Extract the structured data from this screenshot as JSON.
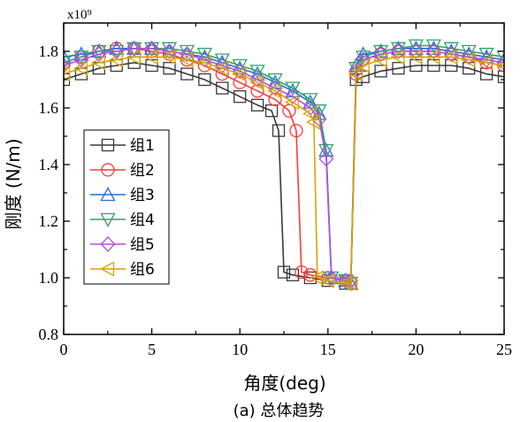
{
  "chart_data": {
    "type": "line",
    "title": "",
    "xlabel": "角度(deg)",
    "ylabel": "刚度 (N/m)",
    "y_multiplier": "x10⁹",
    "caption": "(a)  总体趋势",
    "xlim": [
      0,
      25
    ],
    "ylim": [
      0.8,
      1.9
    ],
    "xticks": [
      0,
      5,
      10,
      15,
      20,
      25
    ],
    "xtick_labels": [
      "0",
      "5",
      "10",
      "15",
      "20",
      "25"
    ],
    "yticks": [
      0.8,
      1.0,
      1.2,
      1.4,
      1.6,
      1.8
    ],
    "ytick_labels": [
      "0.8",
      "1.0",
      "1.2",
      "1.4",
      "1.6",
      "1.8"
    ],
    "grid": false,
    "legend_position": "left-middle",
    "series": [
      {
        "name": "组1",
        "color": "#3a3a3a",
        "marker": "square",
        "x": [
          0,
          1,
          2,
          3,
          4,
          5,
          6,
          7,
          8,
          9,
          10,
          11,
          11.8,
          12.2,
          12.5,
          13,
          14,
          15,
          16,
          16.3,
          16.6,
          17,
          18,
          19,
          20,
          21,
          22,
          23,
          24,
          25
        ],
        "y": [
          1.7,
          1.72,
          1.74,
          1.75,
          1.76,
          1.75,
          1.74,
          1.72,
          1.7,
          1.67,
          1.64,
          1.61,
          1.59,
          1.52,
          1.02,
          1.01,
          1.0,
          0.99,
          0.98,
          0.98,
          1.7,
          1.71,
          1.73,
          1.74,
          1.75,
          1.75,
          1.75,
          1.74,
          1.72,
          1.71
        ]
      },
      {
        "name": "组2",
        "color": "#ff3a3a",
        "marker": "circle",
        "x": [
          0,
          1,
          2,
          3,
          4,
          5,
          6,
          7,
          8,
          9,
          10,
          11,
          12,
          12.8,
          13.2,
          13.5,
          14,
          15,
          16,
          16.3,
          16.6,
          17,
          18,
          19,
          20,
          21,
          22,
          23,
          24,
          25
        ],
        "y": [
          1.76,
          1.78,
          1.8,
          1.81,
          1.81,
          1.8,
          1.79,
          1.77,
          1.75,
          1.72,
          1.69,
          1.66,
          1.63,
          1.59,
          1.52,
          1.02,
          1.01,
          1.0,
          0.99,
          0.98,
          1.72,
          1.77,
          1.79,
          1.8,
          1.8,
          1.8,
          1.79,
          1.78,
          1.76,
          1.75
        ]
      },
      {
        "name": "组3",
        "color": "#1f6fe0",
        "marker": "triangle-up",
        "x": [
          0,
          1,
          2,
          3,
          4,
          5,
          6,
          7,
          8,
          9,
          10,
          11,
          12,
          13,
          14,
          14.5,
          14.9,
          15.2,
          16,
          16.3,
          16.6,
          17,
          18,
          19,
          20,
          21,
          22,
          23,
          24,
          25
        ],
        "y": [
          1.78,
          1.79,
          1.8,
          1.81,
          1.81,
          1.81,
          1.8,
          1.79,
          1.78,
          1.76,
          1.74,
          1.72,
          1.69,
          1.66,
          1.62,
          1.58,
          1.45,
          1.0,
          0.99,
          0.98,
          1.75,
          1.79,
          1.8,
          1.81,
          1.81,
          1.81,
          1.8,
          1.79,
          1.78,
          1.77
        ]
      },
      {
        "name": "组4",
        "color": "#2ea36a",
        "marker": "triangle-down",
        "x": [
          0,
          1,
          2,
          3,
          4,
          5,
          6,
          7,
          8,
          9,
          10,
          11,
          12,
          13,
          14,
          14.5,
          14.9,
          15.2,
          16,
          16.3,
          16.6,
          17,
          18,
          19,
          20,
          21,
          22,
          23,
          24,
          25
        ],
        "y": [
          1.76,
          1.78,
          1.8,
          1.8,
          1.81,
          1.81,
          1.81,
          1.8,
          1.79,
          1.77,
          1.75,
          1.73,
          1.7,
          1.67,
          1.63,
          1.59,
          1.45,
          1.0,
          0.99,
          0.98,
          1.74,
          1.78,
          1.8,
          1.81,
          1.82,
          1.82,
          1.81,
          1.8,
          1.79,
          1.78
        ]
      },
      {
        "name": "组5",
        "color": "#b64fe0",
        "marker": "diamond",
        "x": [
          0,
          1,
          2,
          3,
          4,
          5,
          6,
          7,
          8,
          9,
          10,
          11,
          12,
          13,
          14,
          14.5,
          14.9,
          15.2,
          16,
          16.3,
          16.6,
          17,
          18,
          19,
          20,
          21,
          22,
          23,
          24,
          25
        ],
        "y": [
          1.75,
          1.77,
          1.79,
          1.8,
          1.81,
          1.81,
          1.8,
          1.79,
          1.77,
          1.75,
          1.73,
          1.7,
          1.67,
          1.64,
          1.6,
          1.56,
          1.42,
          1.0,
          0.99,
          0.99,
          1.73,
          1.77,
          1.79,
          1.8,
          1.8,
          1.8,
          1.79,
          1.78,
          1.77,
          1.76
        ]
      },
      {
        "name": "组6",
        "color": "#d9a400",
        "marker": "triangle-left",
        "x": [
          0,
          1,
          2,
          3,
          4,
          5,
          6,
          7,
          8,
          9,
          10,
          11,
          12,
          13,
          14,
          14.2,
          14.4,
          15,
          16,
          16.3,
          16.6,
          17,
          18,
          19,
          20,
          21,
          22,
          23,
          24,
          25
        ],
        "y": [
          1.72,
          1.74,
          1.76,
          1.77,
          1.78,
          1.78,
          1.78,
          1.77,
          1.76,
          1.74,
          1.72,
          1.69,
          1.66,
          1.62,
          1.58,
          1.55,
          1.0,
          0.99,
          0.98,
          0.98,
          1.72,
          1.75,
          1.77,
          1.78,
          1.78,
          1.78,
          1.78,
          1.77,
          1.76,
          1.75
        ]
      }
    ]
  }
}
